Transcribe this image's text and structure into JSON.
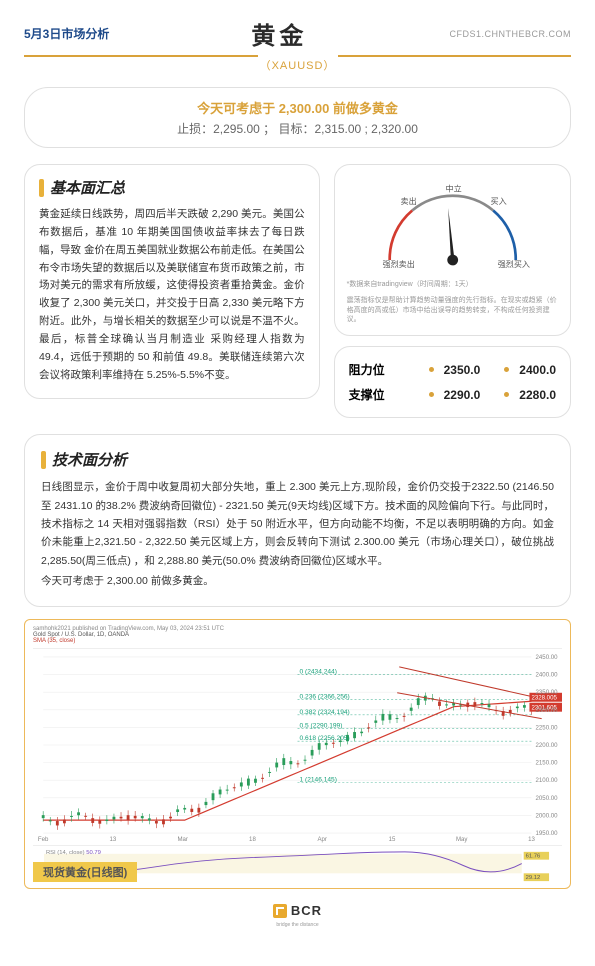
{
  "header": {
    "date_label": "5月3日市场分析",
    "title": "黄金",
    "symbol": "（XAUUSD）",
    "site": "CFDS1.CHNTHEBCR.COM"
  },
  "recommendation": {
    "line1": "今天可考虑于 2,300.00 前做多黄金",
    "line2": "止损：2,295.00 ； 目标：2,315.00 ; 2,320.00"
  },
  "fundamentals": {
    "title": "基本面汇总",
    "body": "黄金延续日线跌势，周四后半天跌破 2,290 美元。美国公布数据后，基准 10 年期美国国债收益率抹去了每日跌幅，导致 金价在周五美国就业数据公布前走低。在美国公布令市场失望的数据后以及美联储宣布货币政策之前，市场对美元的需求有所放缓，这使得投资者重拾黄金。金价收复了 2,300 美元关口，并交投于日高 2,330 美元略下方附近。此外，与增长相关的数据至少可以说是不温不火。最后，标普全球确认当月制造业 采购经理人指数为 49.4，远低于预期的 50 和前值 49.8。美联储连续第六次会议将政策利率维持在 5.25%-5.5%不变。"
  },
  "gauge": {
    "labels": {
      "strong_sell": "强烈卖出",
      "sell": "卖出",
      "neutral": "中立",
      "buy": "买入",
      "strong_buy": "强烈买入"
    },
    "needle_angle_deg": -5,
    "colors": {
      "sell": "#d33b2f",
      "neutral": "#8a8a8a",
      "buy": "#1e5fa8",
      "needle": "#222"
    },
    "foot1": "*数据来自tradingview（时间周期：1天）",
    "foot2": "震荡指标仅是帮助计算趋势动量强度的先行指标。在现实或趋紧（价格高度的高或低）市场中给出误导的趋势转变，不构成任何投资建议。"
  },
  "levels": {
    "resistance": {
      "label": "阻力位",
      "v1": "2350.0",
      "v2": "2400.0"
    },
    "support": {
      "label": "支撑位",
      "v1": "2290.0",
      "v2": "2280.0"
    }
  },
  "technical": {
    "title": "技术面分析",
    "body": "日线图显示，金价于周中收复周初大部分失地，重上 2.300 美元上方,现阶段，金价仍交投于2322.50 (2146.50 至 2431.10 的38.2% 费波纳奇回徽位) - 2321.50 美元(9天均线)区域下方。技术面的风险偏向下行。与此同时，技术指标之 14 天相对强弱指数（RSI）处于 50 附近水平，但方向动能不均衡，不足以表明明确的方向。如金价未能重上2,321.50 - 2,322.50 美元区域上方，则会反转向下测试 2.300.00 美元（市场心理关口），破位挑战 2,285.50(周三低点) ，和 2,288.80 美元(50.0% 费波纳奇回徽位)区域水平。",
    "body2": "今天可考虑于 2,300.00 前做多黄金。"
  },
  "chart": {
    "source_line": "samhohk2021 published on TradingView.com, May 03, 2024 23:51 UTC",
    "pair_line": "Gold Spot / U.S. Dollar, 1D, OANDA",
    "sma_line": "SMA (35, close)",
    "fib_levels": [
      {
        "ratio": "0",
        "price": "2434.244",
        "y": 14
      },
      {
        "ratio": "0.236",
        "price": "2366.256",
        "y": 34
      },
      {
        "ratio": "0.382",
        "price": "2324.194",
        "y": 46
      },
      {
        "ratio": "0.5",
        "price": "2290.199",
        "y": 57
      },
      {
        "ratio": "0.618",
        "price": "2256.205",
        "y": 67
      },
      {
        "ratio": "1",
        "price": "2146.145",
        "y": 100
      }
    ],
    "y_ticks": [
      "2450.00",
      "2400.00",
      "2350.00",
      "2300.00",
      "2250.00",
      "2200.00",
      "2150.00",
      "2100.00",
      "2050.00",
      "2000.00",
      "1950.00"
    ],
    "x_ticks": [
      "Feb",
      "13",
      "Mar",
      "18",
      "Apr",
      "15",
      "May",
      "13"
    ],
    "price_tag": {
      "v1": "2328.005",
      "v2": "2301.605"
    },
    "rsi_label": "RSI (14, close)",
    "rsi_val": "50.79",
    "rsi_tags": [
      "61.76",
      "29.12"
    ],
    "caption": "现货黄金(日线图)",
    "colors": {
      "fib_text": "#17a07a",
      "price_tag_bg": "#d33b2f",
      "sma_line": "#d33b2f",
      "candle_up": "#2a9d5a",
      "candle_dn": "#c0392b",
      "grid": "#eeeeee",
      "rsi_line": "#7a4fbf",
      "rsi_band": "#e8d98a"
    }
  },
  "footer": {
    "brand": "BCR",
    "tag": "bridge the distance"
  }
}
